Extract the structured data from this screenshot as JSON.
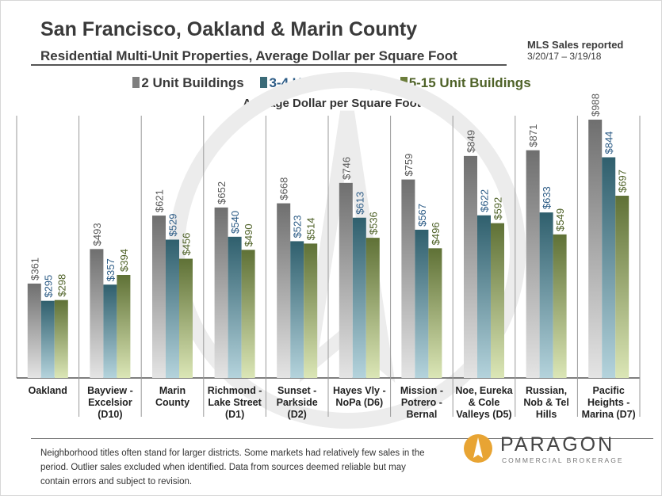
{
  "header": {
    "title": "San Francisco, Oakland & Marin County",
    "subtitle": "Residential Multi-Unit Properties, Average Dollar per Square Foot",
    "mls_label": "MLS Sales reported",
    "mls_dates": "3/20/17 – 3/19/18"
  },
  "footer": {
    "note": "Neighborhood titles often stand for larger districts. Some markets had relatively few sales in the period. Outlier sales excluded when identified. Data from sources deemed reliable but may contain errors and subject to revision.",
    "logo_name": "PARAGON",
    "logo_tag": "COMMERCIAL BROKERAGE"
  },
  "colors": {
    "series_2_unit": "#7f7f7f",
    "series_3_4_unit": "#3b6b78",
    "series_5_15_unit": "#6c7e3c",
    "legend_2_text": "#3a3a3a",
    "legend_3_4_text": "#2d5c86",
    "legend_5_15_text": "#4f6228"
  },
  "chart_data": {
    "type": "bar",
    "title": "Average Dollar per Square Foot",
    "categories": [
      [
        "Oakland"
      ],
      [
        "Bayview -",
        "Excelsior",
        "(D10)"
      ],
      [
        "Marin",
        "County"
      ],
      [
        "Richmond -",
        "Lake Street",
        "(D1)"
      ],
      [
        "Sunset -",
        "Parkside",
        "(D2)"
      ],
      [
        "Hayes Vly -",
        "NoPa (D6)"
      ],
      [
        "Mission -",
        "Potrero -",
        "Bernal"
      ],
      [
        "Noe, Eureka",
        "& Cole",
        "Valleys (D5)"
      ],
      [
        "Russian,",
        "Nob & Tel",
        "Hills"
      ],
      [
        "Pacific",
        "Heights -",
        "Marina (D7)"
      ]
    ],
    "series": [
      {
        "name": "2 Unit Buildings",
        "values": [
          361,
          493,
          621,
          652,
          668,
          746,
          759,
          849,
          871,
          988
        ]
      },
      {
        "name": "3-4 Unit Buildings",
        "values": [
          295,
          357,
          529,
          540,
          523,
          613,
          567,
          622,
          633,
          844
        ]
      },
      {
        "name": "5-15 Unit Buildings",
        "values": [
          298,
          394,
          456,
          490,
          514,
          536,
          496,
          592,
          549,
          697
        ]
      }
    ],
    "value_prefix": "$",
    "ylim": [
      0,
      1000
    ],
    "grid": false,
    "legend_position": "top"
  }
}
